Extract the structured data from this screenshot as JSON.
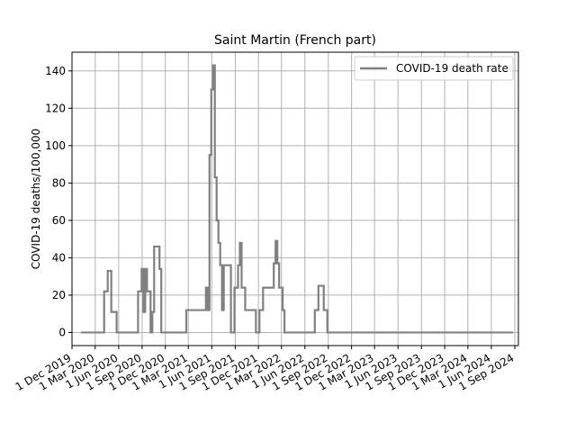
{
  "chart_data": {
    "type": "line",
    "title": "Saint Martin (French part)",
    "xlabel": "",
    "ylabel": "COVID-19 deaths/100,000",
    "x_range": [
      "2019-12-01",
      "2024-09-15"
    ],
    "ylim": [
      -7,
      150
    ],
    "y_ticks": [
      0,
      20,
      40,
      60,
      80,
      100,
      120,
      140
    ],
    "x_ticks": [
      {
        "date": "2019-12-01",
        "label": "1 Dec 2019"
      },
      {
        "date": "2020-03-01",
        "label": "1 Mar 2020"
      },
      {
        "date": "2020-06-01",
        "label": "1 Jun 2020"
      },
      {
        "date": "2020-09-01",
        "label": "1 Sep 2020"
      },
      {
        "date": "2020-12-01",
        "label": "1 Dec 2020"
      },
      {
        "date": "2021-03-01",
        "label": "1 Mar 2021"
      },
      {
        "date": "2021-06-01",
        "label": "1 Jun 2021"
      },
      {
        "date": "2021-09-01",
        "label": "1 Sep 2021"
      },
      {
        "date": "2021-12-01",
        "label": "1 Dec 2021"
      },
      {
        "date": "2022-03-01",
        "label": "1 Mar 2022"
      },
      {
        "date": "2022-06-01",
        "label": "1 Jun 2022"
      },
      {
        "date": "2022-09-01",
        "label": "1 Sep 2022"
      },
      {
        "date": "2022-12-01",
        "label": "1 Dec 2022"
      },
      {
        "date": "2023-03-01",
        "label": "1 Mar 2023"
      },
      {
        "date": "2023-06-01",
        "label": "1 Jun 2023"
      },
      {
        "date": "2023-09-01",
        "label": "1 Sep 2023"
      },
      {
        "date": "2023-12-01",
        "label": "1 Dec 2023"
      },
      {
        "date": "2024-03-01",
        "label": "1 Mar 2024"
      },
      {
        "date": "2024-06-01",
        "label": "1 Jun 2024"
      },
      {
        "date": "2024-09-01",
        "label": "1 Sep 2024"
      }
    ],
    "grid": true,
    "legend_position": "top-right",
    "series": [
      {
        "name": "COVID-19 death rate",
        "color": "#808080",
        "step": true,
        "points": [
          [
            "2020-01-05",
            0
          ],
          [
            "2020-03-22",
            0
          ],
          [
            "2020-04-05",
            22
          ],
          [
            "2020-04-19",
            33
          ],
          [
            "2020-05-03",
            11
          ],
          [
            "2020-05-17",
            11
          ],
          [
            "2020-05-24",
            0
          ],
          [
            "2020-08-09",
            0
          ],
          [
            "2020-08-16",
            22
          ],
          [
            "2020-08-30",
            34
          ],
          [
            "2020-09-06",
            11
          ],
          [
            "2020-09-13",
            34
          ],
          [
            "2020-09-20",
            22
          ],
          [
            "2020-10-04",
            0
          ],
          [
            "2020-10-11",
            11
          ],
          [
            "2020-10-18",
            46
          ],
          [
            "2020-11-08",
            34
          ],
          [
            "2020-11-15",
            0
          ],
          [
            "2021-02-14",
            0
          ],
          [
            "2021-02-21",
            12
          ],
          [
            "2021-05-09",
            24
          ],
          [
            "2021-05-16",
            12
          ],
          [
            "2021-05-23",
            95
          ],
          [
            "2021-05-30",
            130
          ],
          [
            "2021-06-06",
            143
          ],
          [
            "2021-06-13",
            83
          ],
          [
            "2021-06-20",
            60
          ],
          [
            "2021-06-27",
            48
          ],
          [
            "2021-07-04",
            36
          ],
          [
            "2021-07-11",
            12
          ],
          [
            "2021-07-18",
            36
          ],
          [
            "2021-08-15",
            0
          ],
          [
            "2021-08-29",
            24
          ],
          [
            "2021-09-12",
            36
          ],
          [
            "2021-09-19",
            48
          ],
          [
            "2021-09-26",
            24
          ],
          [
            "2021-10-10",
            12
          ],
          [
            "2021-11-21",
            0
          ],
          [
            "2021-12-05",
            12
          ],
          [
            "2021-12-19",
            24
          ],
          [
            "2022-01-30",
            37
          ],
          [
            "2022-02-06",
            49
          ],
          [
            "2022-02-13",
            37
          ],
          [
            "2022-02-20",
            24
          ],
          [
            "2022-03-06",
            12
          ],
          [
            "2022-03-13",
            0
          ],
          [
            "2022-07-03",
            0
          ],
          [
            "2022-07-10",
            12
          ],
          [
            "2022-07-24",
            25
          ],
          [
            "2022-08-14",
            12
          ],
          [
            "2022-08-28",
            0
          ],
          [
            "2024-08-25",
            0
          ]
        ]
      }
    ]
  }
}
